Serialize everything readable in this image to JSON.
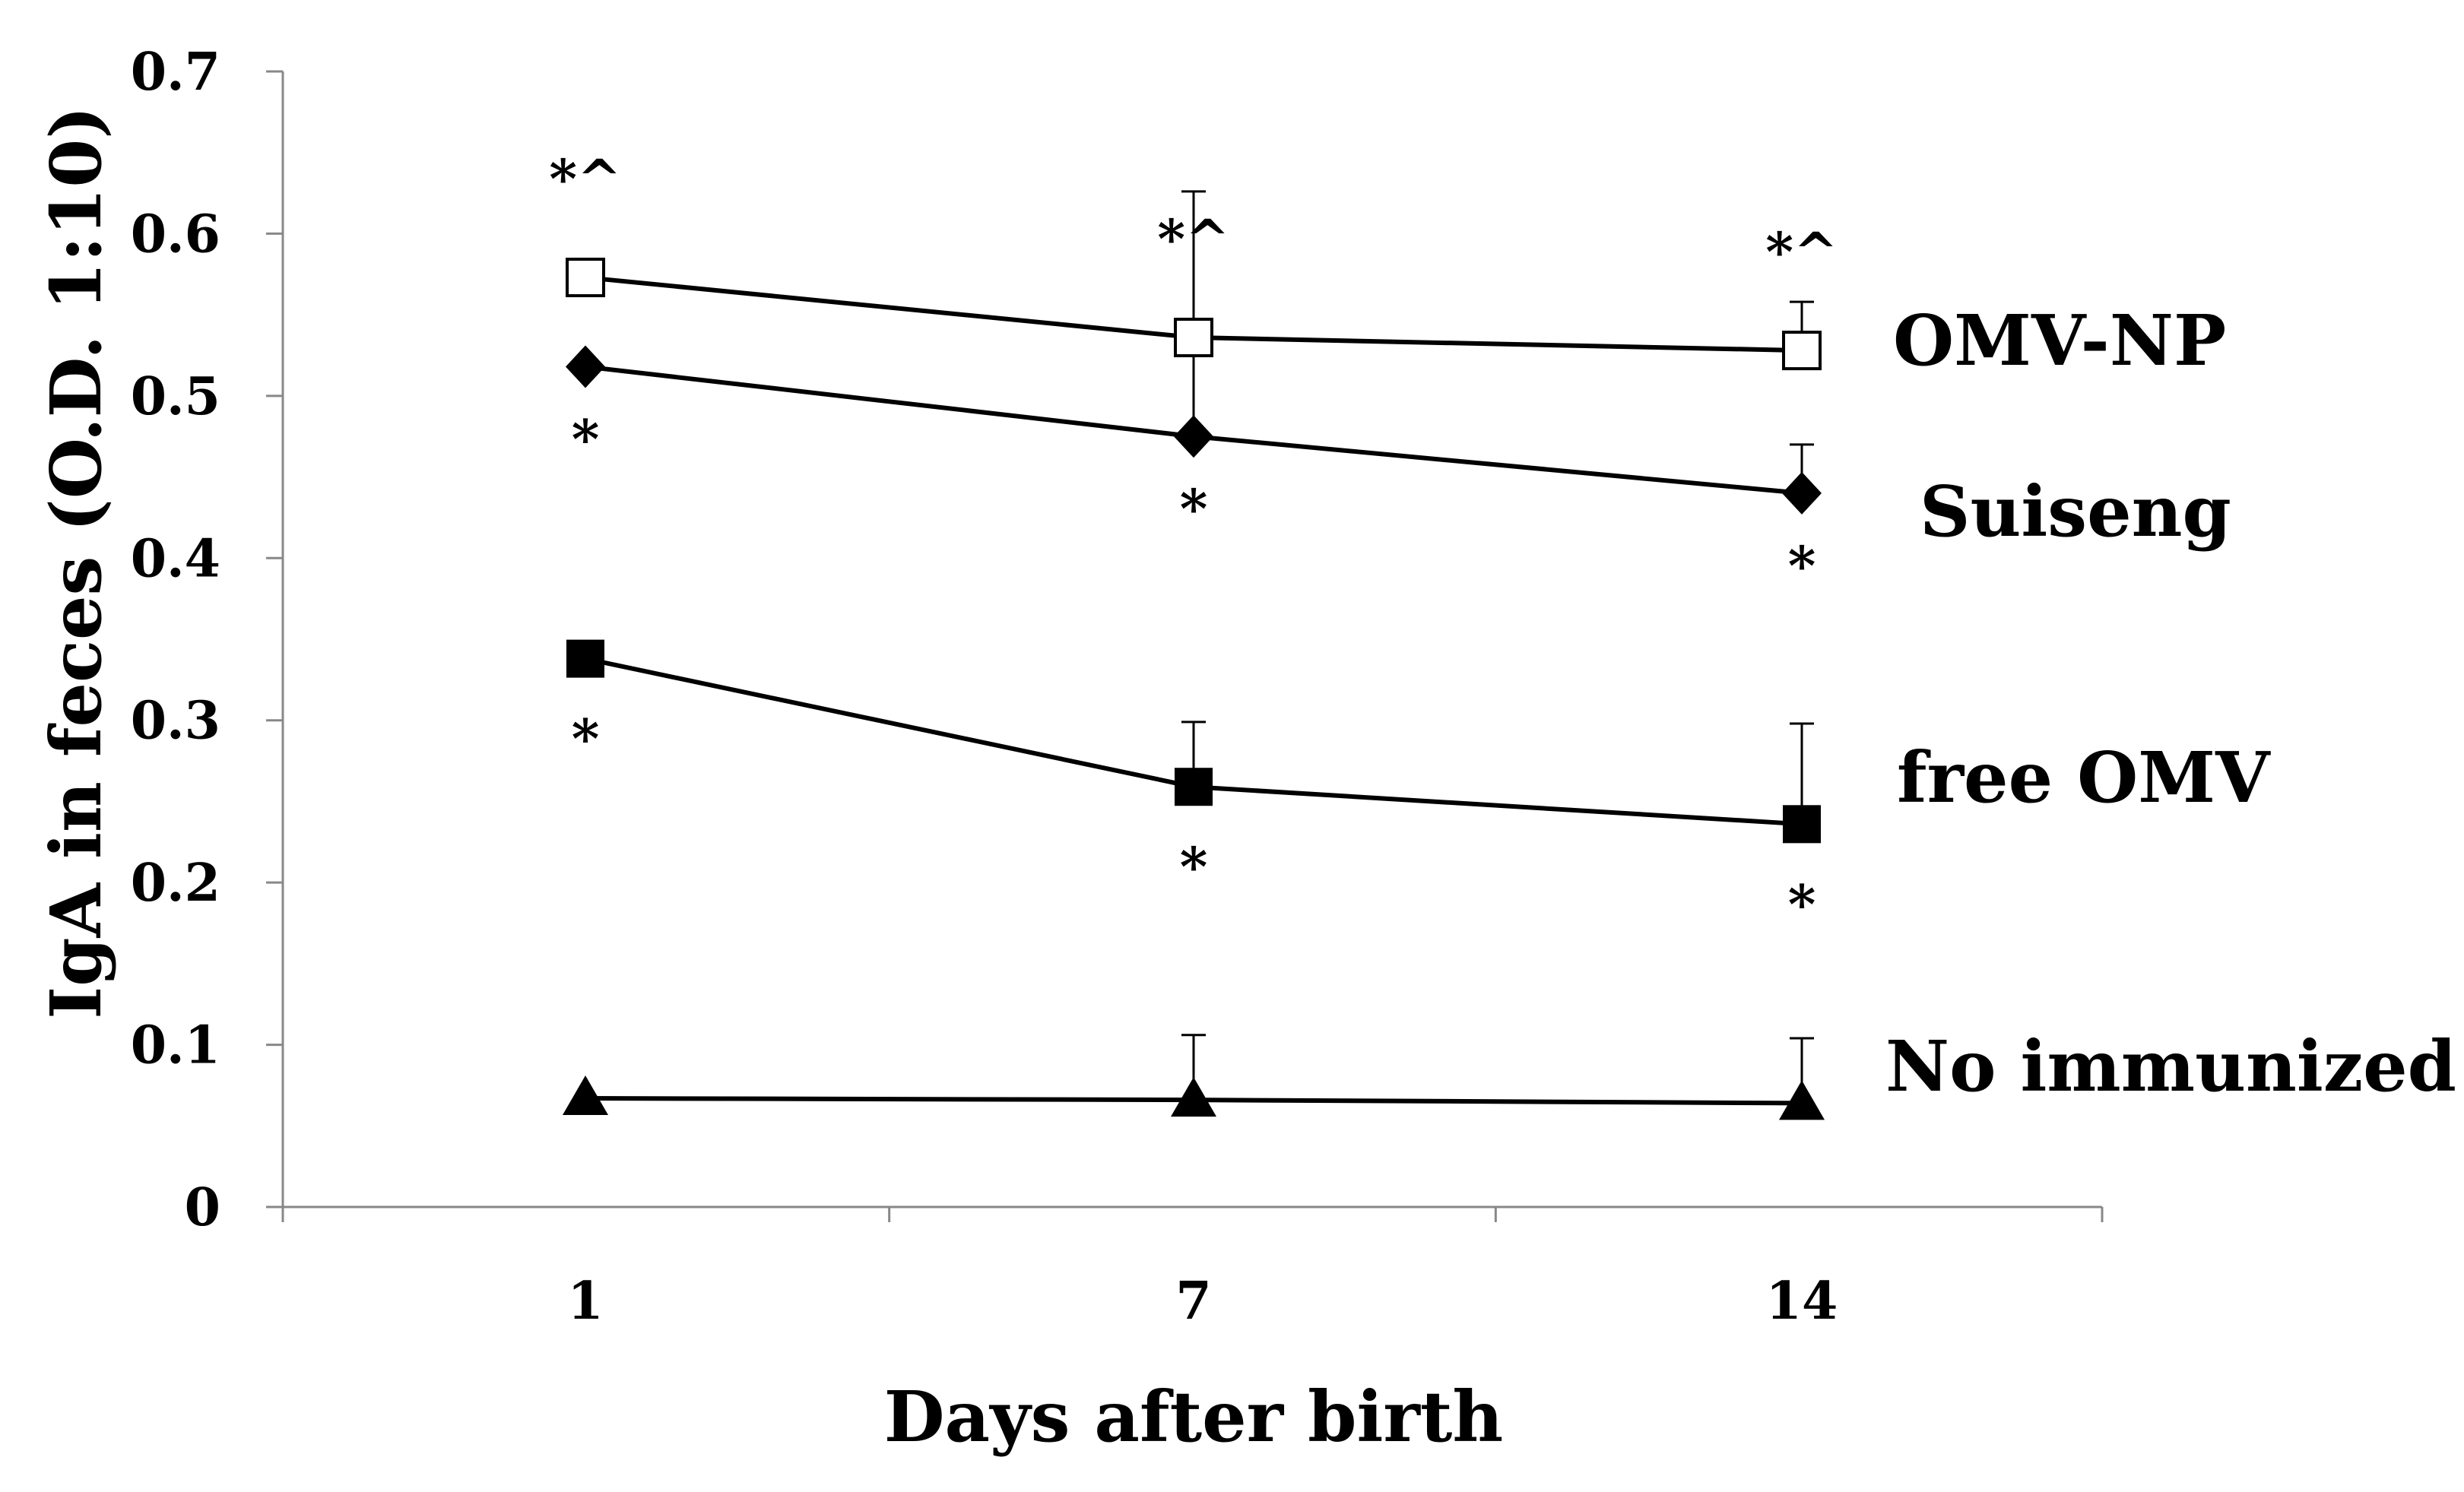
{
  "chart_data": {
    "type": "line",
    "title": "",
    "xlabel": "Days after birth",
    "ylabel": "IgA in feces (O.D. 1:10)",
    "categories": [
      "1",
      "7",
      "14"
    ],
    "ylim": [
      0,
      0.7
    ],
    "yticks": [
      "0",
      "0.1",
      "0.2",
      "0.3",
      "0.4",
      "0.5",
      "0.6",
      "0.7"
    ],
    "grid": false,
    "series": [
      {
        "name": "OMV-NP",
        "marker": "open-square",
        "values": [
          0.573,
          0.536,
          0.528
        ],
        "error": [
          0.0,
          0.09,
          0.03
        ],
        "annotations": [
          "*^",
          "*^",
          "*^"
        ],
        "annotation_side": "above"
      },
      {
        "name": "Suiseng",
        "marker": "filled-diamond",
        "values": [
          0.518,
          0.475,
          0.44
        ],
        "error": [
          0.0,
          0.058,
          0.03
        ],
        "annotations": [
          "*",
          "*",
          "*"
        ],
        "annotation_side": "below"
      },
      {
        "name": "free OMV",
        "marker": "filled-square",
        "values": [
          0.338,
          0.259,
          0.236
        ],
        "error": [
          0.0,
          0.04,
          0.062
        ],
        "annotations": [
          "*",
          "*",
          "*"
        ],
        "annotation_side": "below"
      },
      {
        "name": "No immunized",
        "marker": "filled-triangle",
        "values": [
          0.067,
          0.066,
          0.064
        ],
        "error": [
          0.0,
          0.04,
          0.04
        ],
        "annotations": [
          "",
          "",
          ""
        ],
        "annotation_side": "above"
      }
    ]
  }
}
